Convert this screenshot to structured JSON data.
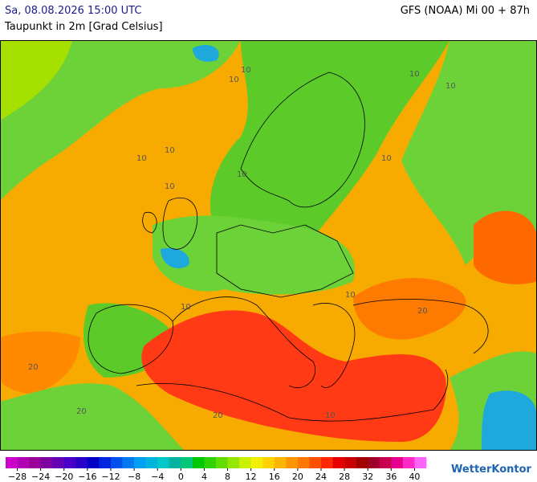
{
  "header": {
    "valid_time": "Sa, 08.08.2026 15:00 UTC",
    "model_run": "GFS (NOAA) Mi 00 + 87h",
    "parameter": "Taupunkt in 2m [Grad Celsius]"
  },
  "contour_labels": [
    10,
    10,
    10,
    10,
    10,
    10,
    10,
    10,
    10,
    20,
    20,
    20,
    10,
    10,
    20,
    10
  ],
  "legend": {
    "colors": [
      "#cc00cc",
      "#b400b4",
      "#9b009b",
      "#8000a0",
      "#6400b4",
      "#4800c8",
      "#2800c8",
      "#0000c8",
      "#0028dc",
      "#0050f0",
      "#0078f0",
      "#00a0f0",
      "#00b4dc",
      "#00c8c8",
      "#00b4a0",
      "#00c878",
      "#00c800",
      "#32d200",
      "#64dc00",
      "#96e600",
      "#c8f000",
      "#f0f000",
      "#ffd200",
      "#ffb400",
      "#ff9600",
      "#ff7800",
      "#ff5000",
      "#ff2800",
      "#e60000",
      "#c80000",
      "#a00000",
      "#a00028",
      "#c80050",
      "#e6008c",
      "#ff28c8",
      "#ff64ff"
    ],
    "ticks": [
      {
        "value": -28,
        "label": "−28"
      },
      {
        "value": -24,
        "label": "−24"
      },
      {
        "value": -20,
        "label": "−20"
      },
      {
        "value": -16,
        "label": "−16"
      },
      {
        "value": -12,
        "label": "−12"
      },
      {
        "value": -8,
        "label": "−8"
      },
      {
        "value": -4,
        "label": "−4"
      },
      0,
      4,
      8,
      12,
      16,
      20,
      24,
      28,
      32,
      36,
      40
    ]
  },
  "brand": "WetterKontor"
}
